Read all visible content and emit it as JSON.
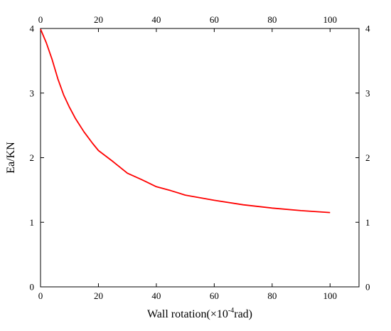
{
  "chart_data": {
    "type": "line",
    "xlabel_main": "Wall rotation(×10",
    "xlabel_sup": "-4",
    "xlabel_tail": "rad)",
    "ylabel": "Ea/KN",
    "xlim": [
      0,
      110
    ],
    "ylim": [
      0,
      4
    ],
    "xticks": [
      0,
      20,
      40,
      60,
      80,
      100
    ],
    "yticks": [
      0,
      1,
      2,
      3,
      4
    ],
    "xtick_labels": [
      "0",
      "20",
      "40",
      "60",
      "80",
      "100"
    ],
    "ytick_labels": [
      "0",
      "1",
      "2",
      "3",
      "4"
    ],
    "mirror_axes": true,
    "grid": false,
    "series": [
      {
        "color": "#ff0000",
        "x": [
          0,
          2,
          4,
          6,
          8,
          10,
          12,
          15,
          18,
          20,
          25,
          30,
          35,
          40,
          45,
          50,
          60,
          70,
          80,
          90,
          100
        ],
        "y": [
          3.99,
          3.78,
          3.52,
          3.22,
          2.97,
          2.78,
          2.61,
          2.4,
          2.22,
          2.11,
          1.94,
          1.76,
          1.66,
          1.55,
          1.49,
          1.42,
          1.34,
          1.27,
          1.22,
          1.18,
          1.15
        ]
      }
    ]
  }
}
